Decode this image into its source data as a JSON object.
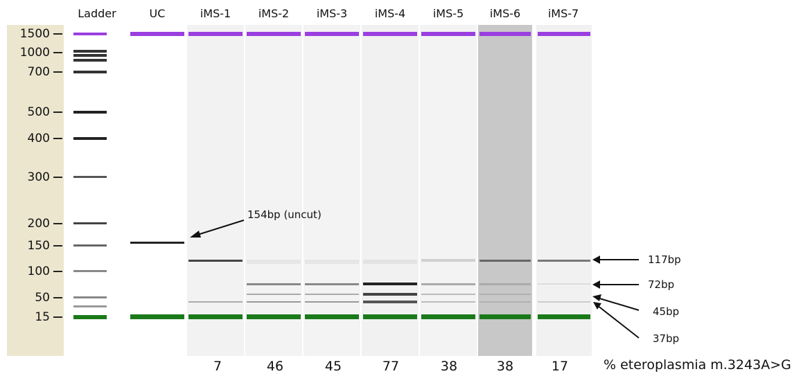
{
  "lane_headers": [
    "Ladder",
    "UC",
    "iMS-1",
    "iMS-2",
    "iMS-3",
    "iMS-4",
    "iMS-5",
    "iMS-6",
    "iMS-7"
  ],
  "ladder_labels": [
    "1500",
    "1000",
    "700",
    "500",
    "400",
    "300",
    "200",
    "150",
    "100",
    "50",
    "15"
  ],
  "annotations": {
    "uncut": "154bp (uncut)",
    "b117": "117bp",
    "b72": "72bp",
    "b45": "45bp",
    "b37": "37bp"
  },
  "heteroplasmy": {
    "values": [
      "7",
      "46",
      "45",
      "77",
      "38",
      "38",
      "17"
    ],
    "label": "% eteroplasmia m.3243A>G"
  },
  "colors": {
    "upper_marker": "#9b3fe0",
    "lower_marker": "#1a7a1a",
    "sizing_panel": "#ece6cf",
    "gel_background": "#f4f4f4",
    "highlight_lane": "#c8c8c8"
  }
}
